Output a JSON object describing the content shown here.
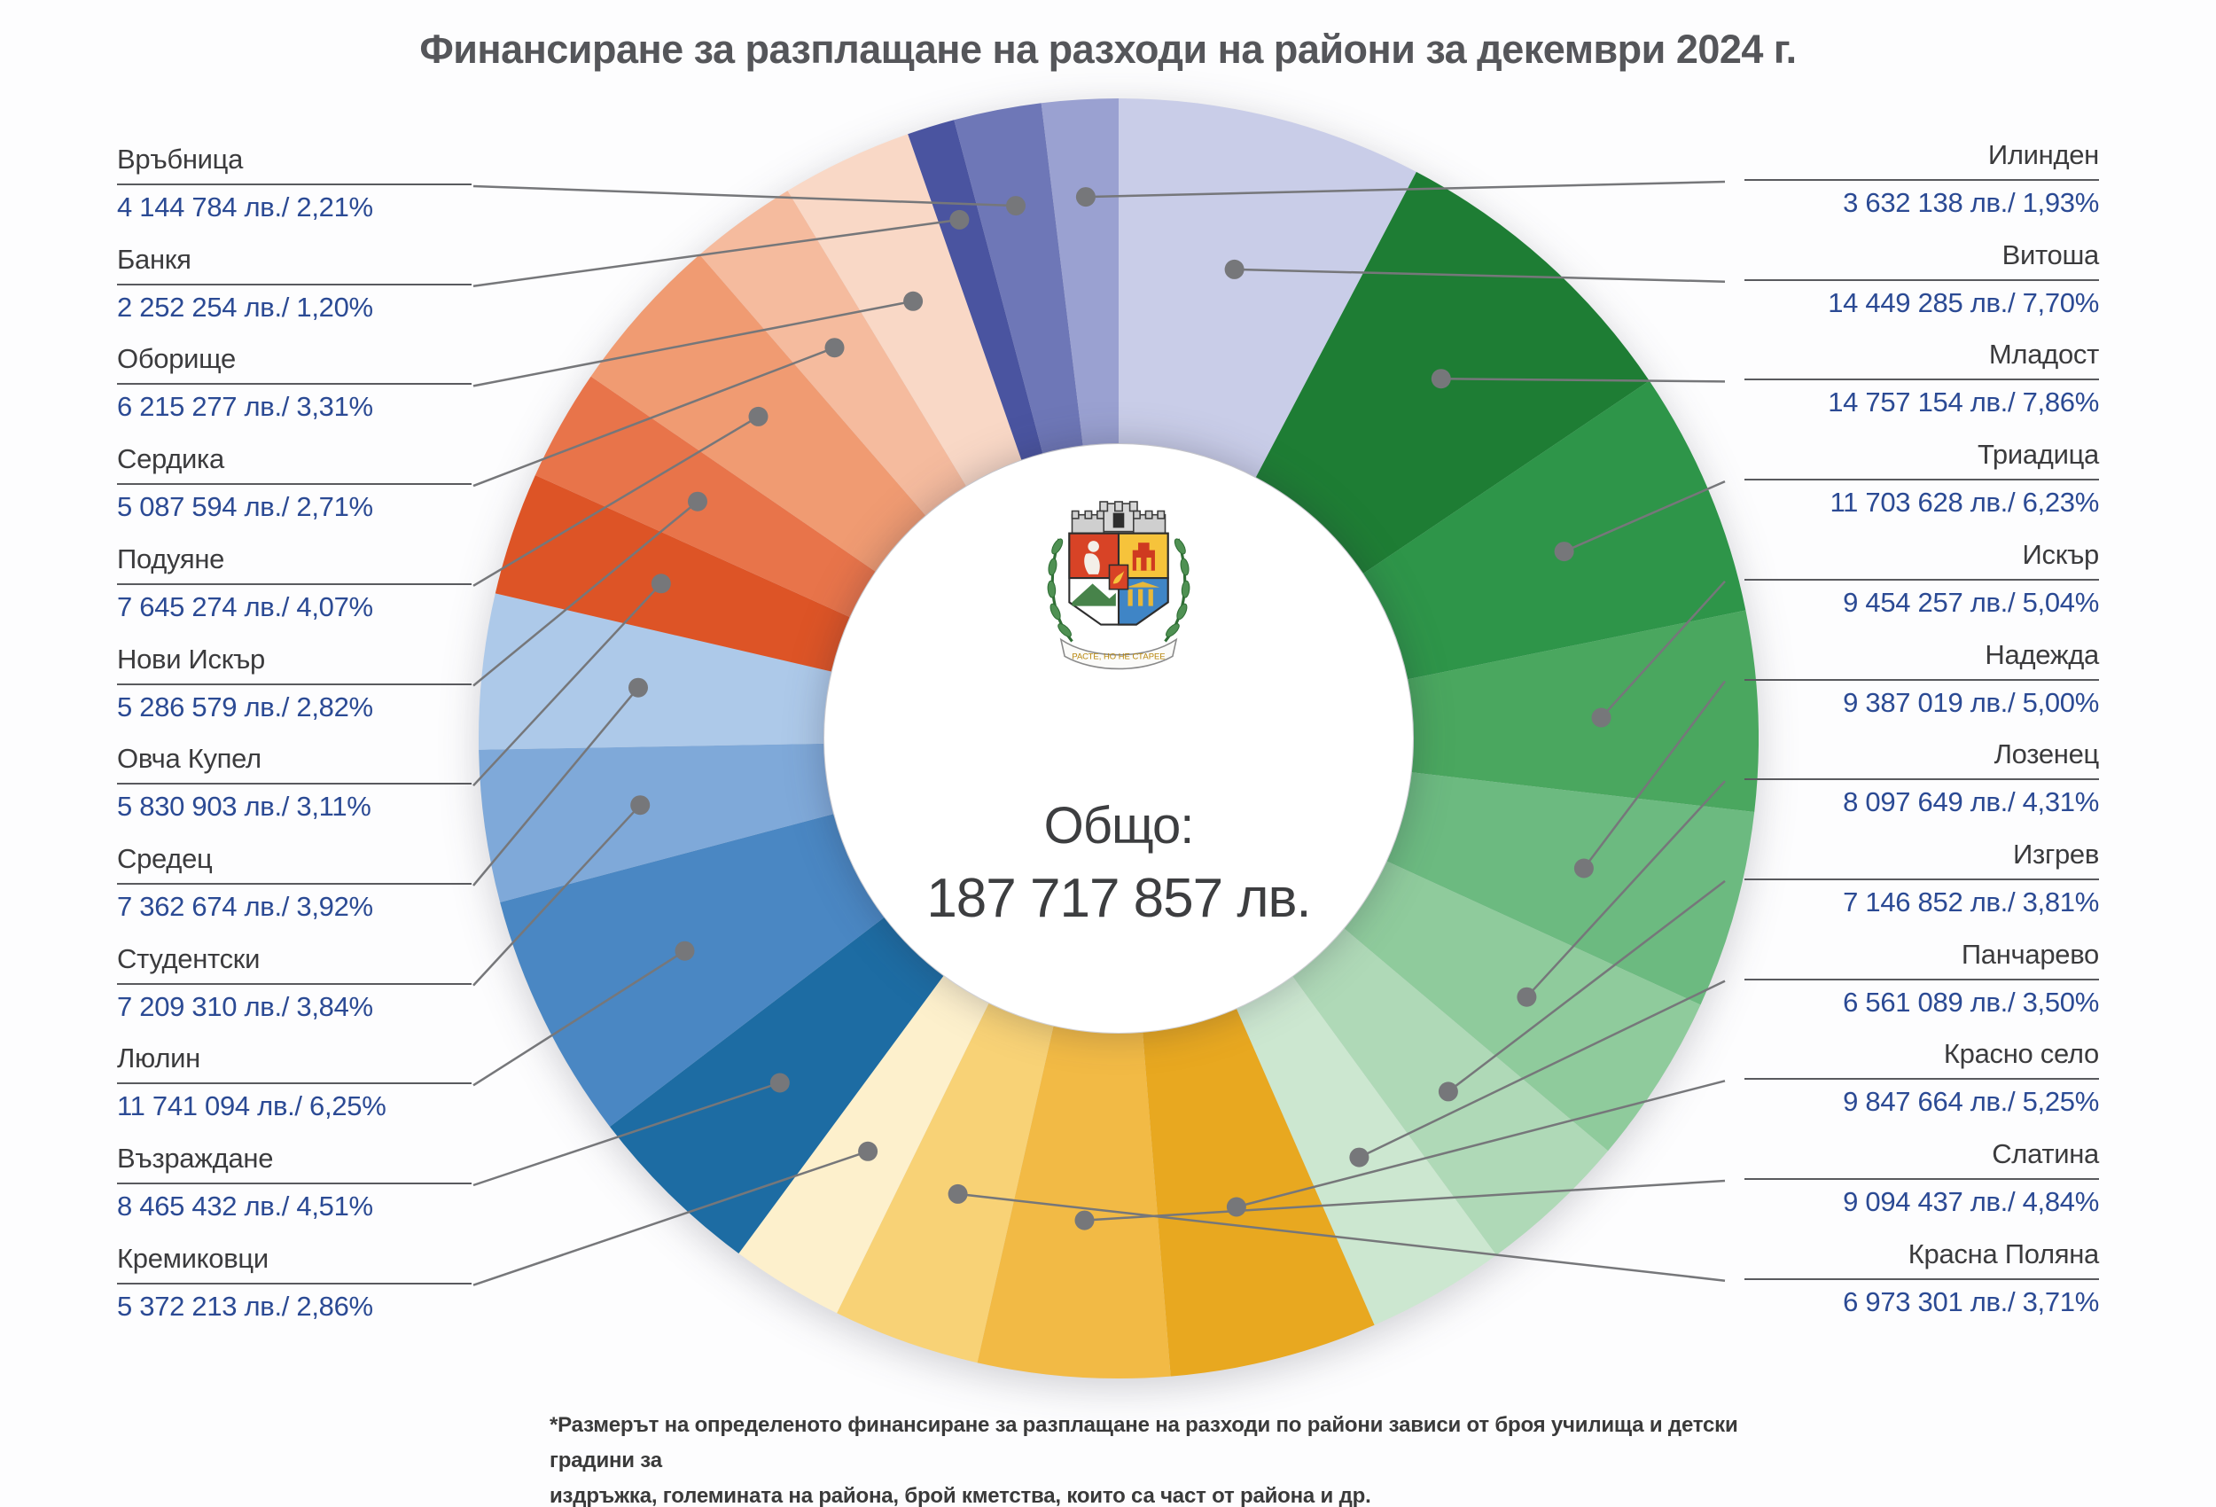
{
  "title": "Финансиране за разплащане на разходи на райони за декември 2024 г.",
  "center": {
    "total_label": "Общо:",
    "total_value_display": "187 717 857 лв.",
    "coat_of_arms_motto": "РАСТЕ, НО НЕ СТАРЕЕ"
  },
  "footnote": {
    "line1": "*Размерът на определеното финансиране за разплащане на разходи по райони зависи от броя училища и детски градини за",
    "line2": "издръжка, големината на района, брой кметства, които са част от района и др."
  },
  "colors": {
    "value_text": "#2b4a94",
    "label_text": "#3b3b3d",
    "leader_line": "#76777a",
    "title_text": "#55565a"
  },
  "chart_data": {
    "type": "pie",
    "title": "Финансиране за разплащане на разходи на райони за декември 2024 г.",
    "total_label": "Общо:",
    "total_value": 187717857,
    "total_value_display": "187 717 857 лв.",
    "unit": "лв.",
    "segments_clockwise_from_top": [
      {
        "name": "Витоша",
        "value": 14449285,
        "pct": 7.7,
        "display": "14 449 285 лв./ 7,70%",
        "color": "#c9cde8"
      },
      {
        "name": "Младост",
        "value": 14757154,
        "pct": 7.86,
        "display": "14 757 154 лв./ 7,86%",
        "color": "#1e7d34"
      },
      {
        "name": "Триадица",
        "value": 11703628,
        "pct": 6.23,
        "display": "11 703 628 лв./ 6,23%",
        "color": "#2e9549"
      },
      {
        "name": "Искър",
        "value": 9454257,
        "pct": 5.04,
        "display": "9 454 257 лв./ 5,04%",
        "color": "#4aa75f"
      },
      {
        "name": "Надежда",
        "value": 9387019,
        "pct": 5.0,
        "display": "9 387 019 лв./ 5,00%",
        "color": "#6cba80"
      },
      {
        "name": "Лозенец",
        "value": 8097649,
        "pct": 4.31,
        "display": "8 097 649 лв./ 4,31%",
        "color": "#8fcb9c"
      },
      {
        "name": "Изгрев",
        "value": 7146852,
        "pct": 3.81,
        "display": "7 146 852 лв./ 3,81%",
        "color": "#afd9b7"
      },
      {
        "name": "Панчарево",
        "value": 6561089,
        "pct": 3.5,
        "display": "6 561 089 лв./ 3,50%",
        "color": "#cce7d0"
      },
      {
        "name": "Красно село",
        "value": 9847664,
        "pct": 5.25,
        "display": "9 847 664 лв./ 5,25%",
        "color": "#e8a820"
      },
      {
        "name": "Слатина",
        "value": 9094437,
        "pct": 4.84,
        "display": "9 094 437 лв./ 4,84%",
        "color": "#f2ba45"
      },
      {
        "name": "Красна Поляна",
        "value": 6973301,
        "pct": 3.71,
        "display": "6 973 301 лв./ 3,71%",
        "color": "#f8d276"
      },
      {
        "name": "Кремиковци",
        "value": 5372213,
        "pct": 2.86,
        "display": "5 372 213 лв./ 2,86%",
        "color": "#fdf0cc"
      },
      {
        "name": "Възраждане",
        "value": 8465432,
        "pct": 4.51,
        "display": "8 465 432 лв./ 4,51%",
        "color": "#1d6ca3"
      },
      {
        "name": "Люлин",
        "value": 11741094,
        "pct": 6.25,
        "display": "11 741 094 лв./ 6,25%",
        "color": "#4a87c3"
      },
      {
        "name": "Студентски",
        "value": 7209310,
        "pct": 3.84,
        "display": "7 209 310 лв./ 3,84%",
        "color": "#7fa9d9"
      },
      {
        "name": "Средец",
        "value": 7362674,
        "pct": 3.92,
        "display": "7 362 674 лв./ 3,92%",
        "color": "#adc9e9"
      },
      {
        "name": "Овча Купел",
        "value": 5830903,
        "pct": 3.11,
        "display": "5 830 903 лв./ 3,11%",
        "color": "#dd5426"
      },
      {
        "name": "Нови Искър",
        "value": 5286579,
        "pct": 2.82,
        "display": "5 286 579 лв./ 2,82%",
        "color": "#e8744a"
      },
      {
        "name": "Подуяне",
        "value": 7645274,
        "pct": 4.07,
        "display": "7 645 274 лв./ 4,07%",
        "color": "#f09b72"
      },
      {
        "name": "Сердика",
        "value": 5087594,
        "pct": 2.71,
        "display": "5 087 594 лв./ 2,71%",
        "color": "#f5bb9e"
      },
      {
        "name": "Оборище",
        "value": 6215277,
        "pct": 3.31,
        "display": "6 215 277 лв./ 3,31%",
        "color": "#f9d8c6"
      },
      {
        "name": "Банкя",
        "value": 2252254,
        "pct": 1.2,
        "display": "2 252 254 лв./ 1,20%",
        "color": "#4a54a0"
      },
      {
        "name": "Връбница",
        "value": 4144784,
        "pct": 2.21,
        "display": "4 144 784 лв./ 2,21%",
        "color": "#6e77b7"
      },
      {
        "name": "Илинден",
        "value": 3632138,
        "pct": 1.93,
        "display": "3 632 138 лв./ 1,93%",
        "color": "#9aa1d1"
      }
    ],
    "label_columns": {
      "left": [
        "Връбница",
        "Банкя",
        "Оборище",
        "Сердика",
        "Подуяне",
        "Нови Искър",
        "Овча Купел",
        "Средец",
        "Студентски",
        "Люлин",
        "Възраждане",
        "Кремиковци"
      ],
      "right": [
        "Илинден",
        "Витоша",
        "Младост",
        "Триадица",
        "Искър",
        "Надежда",
        "Лозенец",
        "Изгрев",
        "Панчарево",
        "Красно село",
        "Слатина",
        "Красна Поляна"
      ]
    },
    "legend_position": "two side columns with leader lines",
    "grid": false
  }
}
